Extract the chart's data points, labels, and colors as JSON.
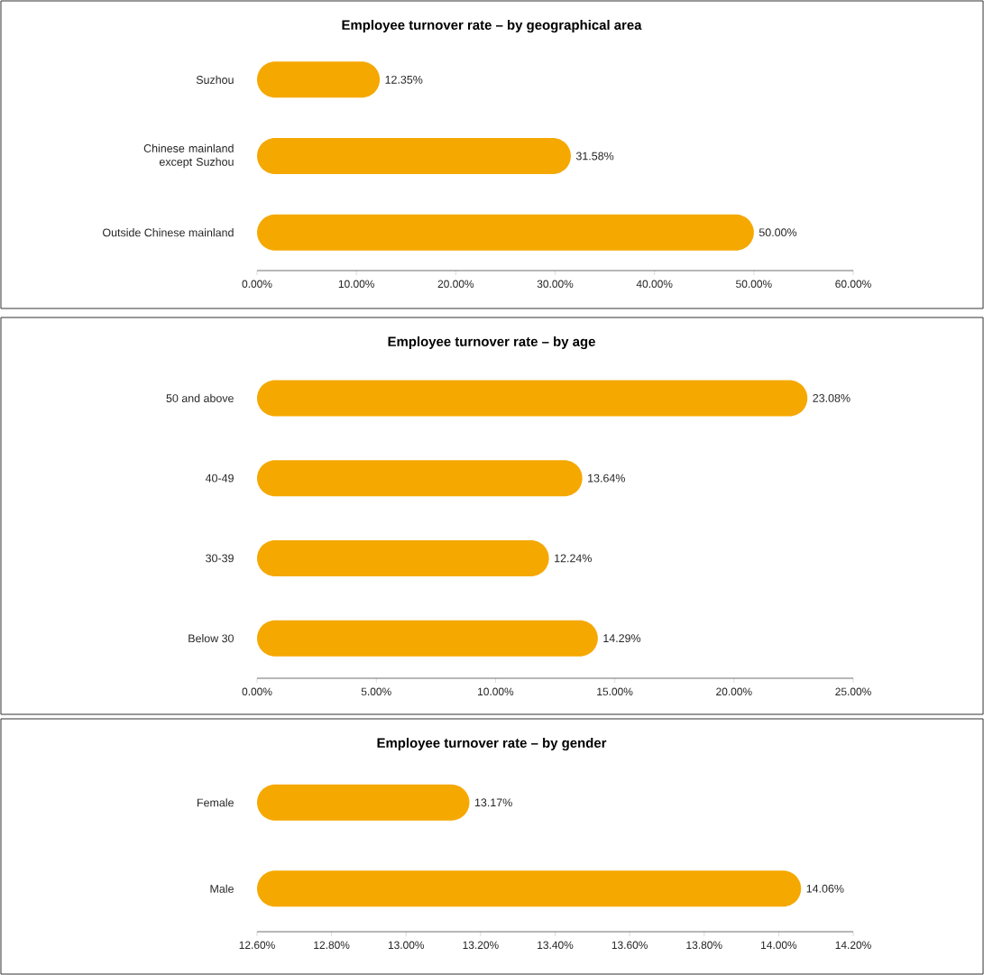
{
  "chart_data": [
    {
      "type": "bar",
      "orientation": "horizontal",
      "title": "Employee turnover rate – by geographical area",
      "categories": [
        "Suzhou",
        "Chinese mainland except Suzhou",
        "Outside Chinese mainland"
      ],
      "values": [
        12.35,
        31.58,
        50.0
      ],
      "value_labels": [
        "12.35%",
        "31.58%",
        "50.00%"
      ],
      "color": "#f5a800",
      "xlim": [
        0,
        60
      ],
      "xticks": [
        {
          "value": 0,
          "label": "0.00%"
        },
        {
          "value": 10,
          "label": "10.00%"
        },
        {
          "value": 20,
          "label": "20.00%"
        },
        {
          "value": 30,
          "label": "30.00%"
        },
        {
          "value": 40,
          "label": "40.00%"
        },
        {
          "value": 50,
          "label": "50.00%"
        },
        {
          "value": 60,
          "label": "60.00%"
        }
      ]
    },
    {
      "type": "bar",
      "orientation": "horizontal",
      "title": "Employee turnover rate – by age",
      "categories": [
        "50 and above",
        "40-49",
        "30-39",
        "Below 30"
      ],
      "values": [
        23.08,
        13.64,
        12.24,
        14.29
      ],
      "value_labels": [
        "23.08%",
        "13.64%",
        "12.24%",
        "14.29%"
      ],
      "color": "#f5a800",
      "xlim": [
        0,
        25
      ],
      "xticks": [
        {
          "value": 0,
          "label": "0.00%"
        },
        {
          "value": 5,
          "label": "5.00%"
        },
        {
          "value": 10,
          "label": "10.00%"
        },
        {
          "value": 15,
          "label": "15.00%"
        },
        {
          "value": 20,
          "label": "20.00%"
        },
        {
          "value": 25,
          "label": "25.00%"
        }
      ]
    },
    {
      "type": "bar",
      "orientation": "horizontal",
      "title": "Employee turnover rate – by gender",
      "categories": [
        "Female",
        "Male"
      ],
      "values": [
        13.17,
        14.06
      ],
      "value_labels": [
        "13.17%",
        "14.06%"
      ],
      "color": "#f5a800",
      "xlim": [
        12.6,
        14.2
      ],
      "xticks": [
        {
          "value": 12.6,
          "label": "12.60%"
        },
        {
          "value": 12.8,
          "label": "12.80%"
        },
        {
          "value": 13.0,
          "label": "13.00%"
        },
        {
          "value": 13.2,
          "label": "13.20%"
        },
        {
          "value": 13.4,
          "label": "13.40%"
        },
        {
          "value": 13.6,
          "label": "13.60%"
        },
        {
          "value": 13.8,
          "label": "13.80%"
        },
        {
          "value": 14.0,
          "label": "14.00%"
        },
        {
          "value": 14.2,
          "label": "14.20%"
        }
      ]
    }
  ]
}
